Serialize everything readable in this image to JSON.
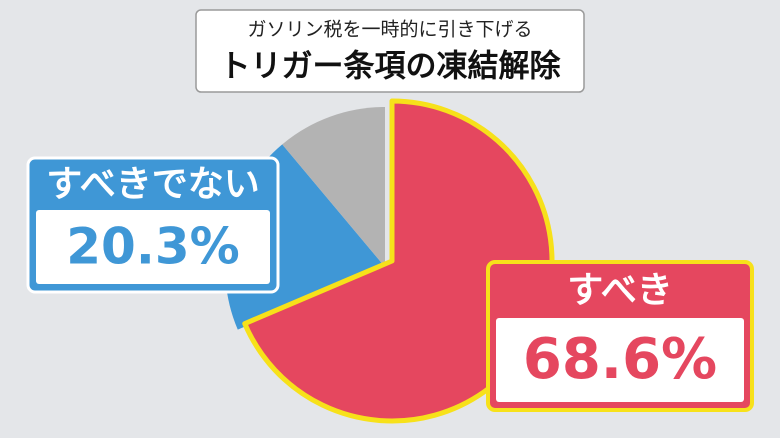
{
  "chart_data": {
    "type": "pie",
    "title": "ガソリン税を一時的に引き下げる",
    "subtitle": "トリガー条項の凍結解除",
    "categories": [
      "すべき",
      "すべきでない",
      null
    ],
    "values": [
      68.6,
      20.3,
      11.1
    ],
    "value_labels": [
      "68.6%",
      "20.3%",
      null
    ],
    "colors": [
      "#e5475f",
      "#3f97d6",
      "#b3b3b3"
    ],
    "exploded": [
      true,
      false,
      false
    ],
    "highlight_color": "#f7e11a"
  }
}
